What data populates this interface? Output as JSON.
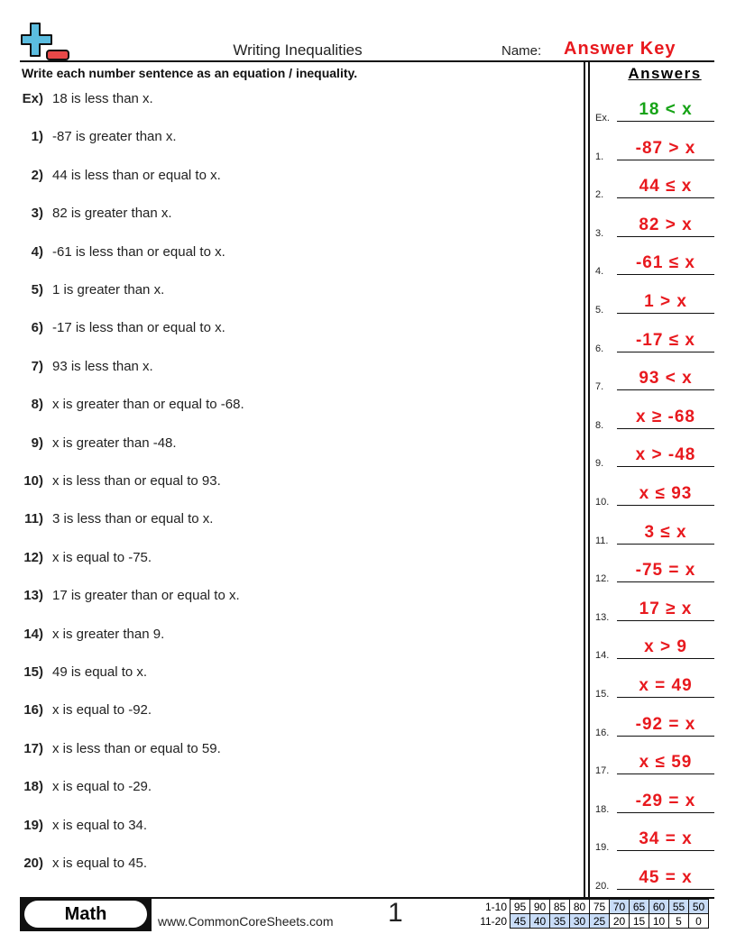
{
  "header": {
    "title": "Writing Inequalities",
    "name_label": "Name:",
    "name_value": "Answer Key",
    "logo": "plus-minus-logo",
    "accent": "#e8191e",
    "example_color": "#16a316"
  },
  "instructions": "Write each number sentence as an equation / inequality.",
  "answers_heading": "Answers",
  "questions": [
    {
      "num": "Ex)",
      "text": "18 is less than x.",
      "label": "Ex.",
      "answer": "18 < x"
    },
    {
      "num": "1)",
      "text": "-87 is greater than x.",
      "label": "1.",
      "answer": "-87 > x"
    },
    {
      "num": "2)",
      "text": "44 is less than or equal to x.",
      "label": "2.",
      "answer": "44 ≤ x"
    },
    {
      "num": "3)",
      "text": "82 is greater than x.",
      "label": "3.",
      "answer": "82 > x"
    },
    {
      "num": "4)",
      "text": "-61 is less than or equal to x.",
      "label": "4.",
      "answer": "-61 ≤ x"
    },
    {
      "num": "5)",
      "text": "1 is greater than x.",
      "label": "5.",
      "answer": "1 > x"
    },
    {
      "num": "6)",
      "text": "-17 is less than or equal to x.",
      "label": "6.",
      "answer": "-17 ≤ x"
    },
    {
      "num": "7)",
      "text": "93 is less than x.",
      "label": "7.",
      "answer": "93 < x"
    },
    {
      "num": "8)",
      "text": "x is greater than or equal to -68.",
      "label": "8.",
      "answer": "x ≥ -68"
    },
    {
      "num": "9)",
      "text": "x is greater than -48.",
      "label": "9.",
      "answer": "x > -48"
    },
    {
      "num": "10)",
      "text": "x is less than or equal to 93.",
      "label": "10.",
      "answer": "x ≤ 93"
    },
    {
      "num": "11)",
      "text": "3 is less than or equal to x.",
      "label": "11.",
      "answer": "3 ≤ x"
    },
    {
      "num": "12)",
      "text": "x is equal to -75.",
      "label": "12.",
      "answer": "-75 = x"
    },
    {
      "num": "13)",
      "text": "17 is greater than or equal to x.",
      "label": "13.",
      "answer": "17 ≥ x"
    },
    {
      "num": "14)",
      "text": "x is greater than 9.",
      "label": "14.",
      "answer": "x > 9"
    },
    {
      "num": "15)",
      "text": "49 is equal to x.",
      "label": "15.",
      "answer": "x = 49"
    },
    {
      "num": "16)",
      "text": "x is equal to -92.",
      "label": "16.",
      "answer": "-92 = x"
    },
    {
      "num": "17)",
      "text": "x is less than or equal to 59.",
      "label": "17.",
      "answer": "x ≤ 59"
    },
    {
      "num": "18)",
      "text": "x is equal to -29.",
      "label": "18.",
      "answer": "-29 = x"
    },
    {
      "num": "19)",
      "text": "x is equal to 34.",
      "label": "19.",
      "answer": "34 = x"
    },
    {
      "num": "20)",
      "text": "x is equal to 45.",
      "label": "20.",
      "answer": "45 = x"
    }
  ],
  "footer": {
    "subject": "Math",
    "site": "www.CommonCoreSheets.com",
    "page": "1",
    "score_rows": [
      {
        "label": "1-10",
        "values": [
          "95",
          "90",
          "85",
          "80",
          "75",
          "70",
          "65",
          "60",
          "55",
          "50"
        ],
        "highlight": [
          false,
          false,
          false,
          false,
          false,
          true,
          true,
          true,
          true,
          true
        ]
      },
      {
        "label": "11-20",
        "values": [
          "45",
          "40",
          "35",
          "30",
          "25",
          "20",
          "15",
          "10",
          "5",
          "0"
        ],
        "highlight": [
          true,
          true,
          true,
          true,
          true,
          false,
          false,
          false,
          false,
          false
        ]
      }
    ]
  }
}
